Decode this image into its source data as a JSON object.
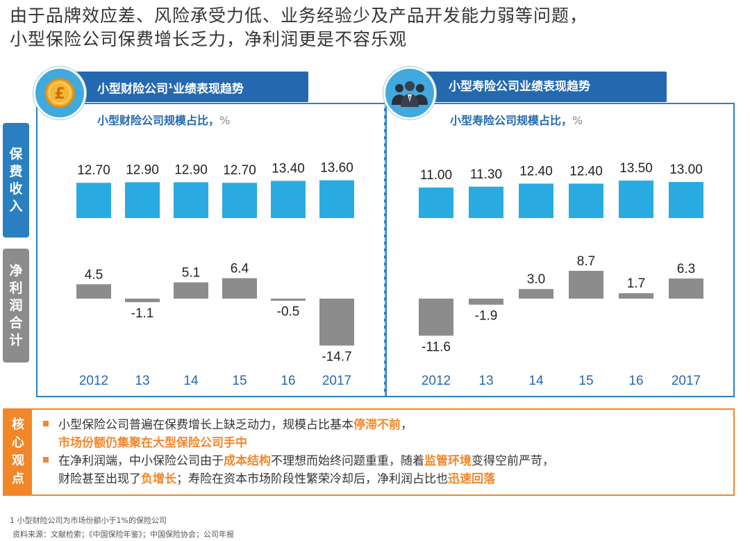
{
  "title": {
    "line1": "由于品牌效应差、风险承受力低、业务经验少及产品开发能力弱等问题，",
    "line2": "小型保险公司保费增长乏力，净利润更是不容乐观"
  },
  "side_labels": {
    "premium": [
      "保",
      "费",
      "收",
      "入"
    ],
    "profit": [
      "净",
      "利",
      "润",
      "合",
      "计"
    ]
  },
  "panels": {
    "left": {
      "tab_title": "小型财险公司",
      "tab_sup": "1",
      "tab_suffix": "业绩表现趋势",
      "subtitle": "小型财险公司规模占比，",
      "unit": "%",
      "icon": "pound-coin-icon"
    },
    "right": {
      "tab_title": "小型寿险公司业绩表现趋势",
      "subtitle": "小型寿险公司规模占比，",
      "unit": "%",
      "icon": "business-people-icon"
    }
  },
  "chart_data": [
    {
      "type": "bar",
      "title": "小型财险公司规模占比，%",
      "categories": [
        "2012",
        "13",
        "14",
        "15",
        "16",
        "2017"
      ],
      "series": [
        {
          "name": "保费收入",
          "values": [
            12.7,
            12.9,
            12.9,
            12.7,
            13.4,
            13.6
          ],
          "labels": [
            "12.70",
            "12.90",
            "12.90",
            "12.70",
            "13.40",
            "13.60"
          ],
          "color": "#29abe2"
        },
        {
          "name": "净利润合计",
          "values": [
            4.5,
            -1.1,
            5.1,
            6.4,
            -0.5,
            -14.7
          ],
          "labels": [
            "4.5",
            "-1.1",
            "5.1",
            "6.4",
            "-0.5",
            "-14.7"
          ],
          "color": "#8c8c8c"
        }
      ]
    },
    {
      "type": "bar",
      "title": "小型寿险公司规模占比，%",
      "categories": [
        "2012",
        "13",
        "14",
        "15",
        "16",
        "2017"
      ],
      "series": [
        {
          "name": "保费收入",
          "values": [
            11.0,
            11.3,
            12.4,
            12.4,
            13.5,
            13.0
          ],
          "labels": [
            "11.00",
            "11.30",
            "12.40",
            "12.40",
            "13.50",
            "13.00"
          ],
          "color": "#29abe2"
        },
        {
          "name": "净利润合计",
          "values": [
            -11.6,
            -1.9,
            3.0,
            8.7,
            1.7,
            6.3
          ],
          "labels": [
            "-11.6",
            "-1.9",
            "3.0",
            "8.7",
            "1.7",
            "6.3"
          ],
          "color": "#8c8c8c"
        }
      ]
    }
  ],
  "insight": {
    "label": [
      "核",
      "心",
      "观",
      "点"
    ],
    "b1_a": "小型保险公司普遍在保费增长上缺乏动力，规模占比基本",
    "b1_hl": "停滞不前",
    "b1_b": "，",
    "b1_line2": "市场份额仍集聚在大型保险公司手中",
    "b2_a": "在净利润端，中小保险公司由于",
    "b2_hl1": "成本结构",
    "b2_b": "不理想而始终问题重重，随着",
    "b2_hl2": "监管环境",
    "b2_c": "变得空前严苛，",
    "b2_d": "财险甚至出现了",
    "b2_hl3": "负增长",
    "b2_e": "；寿险在资本市场阶段性繁荣冷却后，净利润占比也",
    "b2_hl4": "迅速回落"
  },
  "footnote": "1 小型财险公司为市场份额小于1%的保险公司",
  "source": "资料来源：文献检索；《中国保险年鉴》；中国保险协会；公司年报",
  "colors": {
    "accent": "#2469b0",
    "frame": "#2a7fc1",
    "bar_blue": "#29abe2",
    "bar_gray": "#8c8c8c",
    "orange": "#f2872a"
  }
}
